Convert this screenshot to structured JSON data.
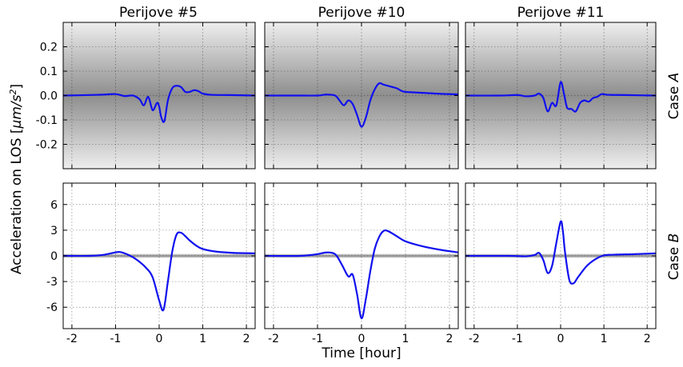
{
  "figure": {
    "ylabel": "Acceleration on LOS [μm/s²]",
    "ylabel_plain": "Acceleration on LOS [",
    "ylabel_unit": "μm/s",
    "ylabel_exp": "2",
    "ylabel_close": "]",
    "xlabel": "Time [hour]",
    "column_titles": [
      "Perijove #5",
      "Perijove #10",
      "Perijove #11"
    ],
    "row_labels": [
      "Case A",
      "Case B"
    ],
    "row_label_prefix": "Case",
    "row_label_letters": [
      "A",
      "B"
    ]
  },
  "chart_data": [
    {
      "type": "line",
      "title": "Perijove #5",
      "row": "Case A",
      "xlim": [
        -2.2,
        2.2
      ],
      "ylim": [
        -0.3,
        0.3
      ],
      "xticks": [
        -2,
        -1,
        0,
        1,
        2
      ],
      "yticks": [
        -0.2,
        -0.1,
        0.0,
        0.1,
        0.2
      ],
      "ytick_labels": [
        "-0.2",
        "-0.1",
        "0.0",
        "0.1",
        "0.2"
      ],
      "grid": true,
      "line_color": "#1010ee",
      "x": [
        -2.2,
        -1.4,
        -1.0,
        -0.8,
        -0.6,
        -0.45,
        -0.35,
        -0.25,
        -0.15,
        -0.05,
        0.0,
        0.05,
        0.12,
        0.2,
        0.3,
        0.4,
        0.5,
        0.6,
        0.7,
        0.8,
        0.9,
        1.0,
        1.2,
        1.6,
        2.2
      ],
      "y": [
        0.0,
        0.003,
        0.006,
        -0.002,
        0.0,
        -0.015,
        -0.04,
        -0.005,
        -0.06,
        -0.03,
        -0.045,
        -0.09,
        -0.105,
        -0.02,
        0.03,
        0.04,
        0.035,
        0.015,
        0.015,
        0.022,
        0.018,
        0.008,
        0.003,
        0.002,
        0.0
      ]
    },
    {
      "type": "line",
      "title": "Perijove #10",
      "row": "Case A",
      "xlim": [
        -2.2,
        2.2
      ],
      "ylim": [
        -0.3,
        0.3
      ],
      "xticks": [
        -2,
        -1,
        0,
        1,
        2
      ],
      "yticks": [
        -0.2,
        -0.1,
        0.0,
        0.1,
        0.2
      ],
      "grid": true,
      "line_color": "#1010ee",
      "x": [
        -2.2,
        -1.4,
        -1.0,
        -0.8,
        -0.6,
        -0.5,
        -0.4,
        -0.3,
        -0.2,
        -0.1,
        0.0,
        0.1,
        0.2,
        0.3,
        0.4,
        0.5,
        0.6,
        0.7,
        0.8,
        0.9,
        1.0,
        1.3,
        1.8,
        2.2
      ],
      "y": [
        0.0,
        0.0,
        0.0,
        0.004,
        0.0,
        -0.02,
        -0.04,
        -0.02,
        -0.035,
        -0.08,
        -0.128,
        -0.09,
        -0.02,
        0.025,
        0.05,
        0.045,
        0.04,
        0.035,
        0.03,
        0.02,
        0.015,
        0.012,
        0.007,
        0.005
      ]
    },
    {
      "type": "line",
      "title": "Perijove #11",
      "row": "Case A",
      "xlim": [
        -2.2,
        2.2
      ],
      "ylim": [
        -0.3,
        0.3
      ],
      "xticks": [
        -2,
        -1,
        0,
        1,
        2
      ],
      "yticks": [
        -0.2,
        -0.1,
        0.0,
        0.1,
        0.2
      ],
      "grid": true,
      "line_color": "#1010ee",
      "x": [
        -2.2,
        -1.4,
        -1.0,
        -0.8,
        -0.6,
        -0.5,
        -0.4,
        -0.3,
        -0.2,
        -0.1,
        0.0,
        0.08,
        0.15,
        0.25,
        0.35,
        0.45,
        0.55,
        0.65,
        0.75,
        0.85,
        0.95,
        1.1,
        1.5,
        2.2
      ],
      "y": [
        0.0,
        0.0,
        0.002,
        -0.003,
        0.0,
        0.008,
        -0.01,
        -0.065,
        -0.03,
        -0.04,
        0.055,
        0.005,
        -0.05,
        -0.055,
        -0.065,
        -0.03,
        -0.02,
        -0.025,
        -0.01,
        -0.005,
        0.006,
        0.003,
        0.002,
        0.0
      ]
    },
    {
      "type": "line",
      "title": "Perijove #5",
      "row": "Case B",
      "xlim": [
        -2.2,
        2.2
      ],
      "ylim": [
        -8.5,
        8.5
      ],
      "xticks": [
        -2,
        -1,
        0,
        1,
        2
      ],
      "yticks": [
        -6,
        -3,
        0,
        3,
        6
      ],
      "ytick_labels": [
        "-6",
        "-3",
        "0",
        "3",
        "6"
      ],
      "grid": true,
      "line_color": "#1010ee",
      "x": [
        -2.2,
        -1.6,
        -1.3,
        -1.1,
        -0.9,
        -0.7,
        -0.5,
        -0.3,
        -0.15,
        0.0,
        0.1,
        0.2,
        0.3,
        0.4,
        0.5,
        0.6,
        0.7,
        0.85,
        1.0,
        1.3,
        1.7,
        2.2
      ],
      "y": [
        0.0,
        0.0,
        0.1,
        0.3,
        0.45,
        0.1,
        -0.5,
        -1.4,
        -2.5,
        -5.2,
        -6.3,
        -3.0,
        0.5,
        2.5,
        2.7,
        2.3,
        1.8,
        1.2,
        0.8,
        0.5,
        0.35,
        0.3
      ]
    },
    {
      "type": "line",
      "title": "Perijove #10",
      "row": "Case B",
      "xlim": [
        -2.2,
        2.2
      ],
      "ylim": [
        -8.5,
        8.5
      ],
      "xticks": [
        -2,
        -1,
        0,
        1,
        2
      ],
      "yticks": [
        -6,
        -3,
        0,
        3,
        6
      ],
      "grid": true,
      "line_color": "#1010ee",
      "x": [
        -2.2,
        -1.4,
        -1.0,
        -0.8,
        -0.6,
        -0.45,
        -0.3,
        -0.2,
        -0.1,
        0.0,
        0.1,
        0.2,
        0.3,
        0.4,
        0.5,
        0.6,
        0.8,
        1.0,
        1.4,
        1.8,
        2.2
      ],
      "y": [
        0.0,
        0.0,
        0.2,
        0.4,
        0.2,
        -1.0,
        -2.4,
        -2.2,
        -4.5,
        -7.3,
        -5.0,
        -1.8,
        0.8,
        2.2,
        2.9,
        2.9,
        2.3,
        1.7,
        1.1,
        0.7,
        0.4
      ]
    },
    {
      "type": "line",
      "title": "Perijove #11",
      "row": "Case B",
      "xlim": [
        -2.2,
        2.2
      ],
      "ylim": [
        -8.5,
        8.5
      ],
      "xticks": [
        -2,
        -1,
        0,
        1,
        2
      ],
      "yticks": [
        -6,
        -3,
        0,
        3,
        6
      ],
      "grid": true,
      "line_color": "#1010ee",
      "x": [
        -2.2,
        -1.2,
        -0.8,
        -0.6,
        -0.5,
        -0.4,
        -0.3,
        -0.2,
        -0.1,
        0.0,
        0.05,
        0.1,
        0.2,
        0.3,
        0.4,
        0.6,
        0.8,
        1.0,
        1.3,
        1.7,
        2.2
      ],
      "y": [
        0.0,
        0.0,
        -0.05,
        0.1,
        0.35,
        -0.5,
        -2.0,
        -1.2,
        1.5,
        4.0,
        3.0,
        0.5,
        -2.8,
        -3.2,
        -2.5,
        -1.2,
        -0.4,
        0.05,
        0.15,
        0.2,
        0.3
      ]
    }
  ]
}
